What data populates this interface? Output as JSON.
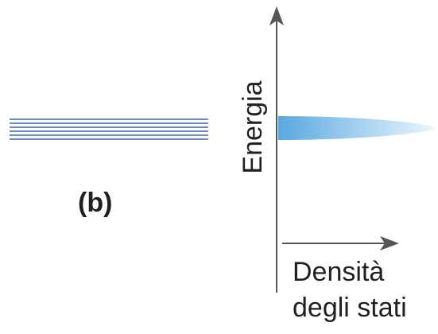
{
  "diagram": {
    "panel_label": "(b)",
    "y_axis_label": "Energia",
    "x_axis_label_line1": "Densità",
    "x_axis_label_line2": "degli stati",
    "energy_level_lines": 6,
    "colors": {
      "line": "#3a64b3",
      "axis": "#555555",
      "text": "#231f20",
      "band_dark": "#5aa8e0",
      "band_light": "#e6f3fc"
    }
  }
}
